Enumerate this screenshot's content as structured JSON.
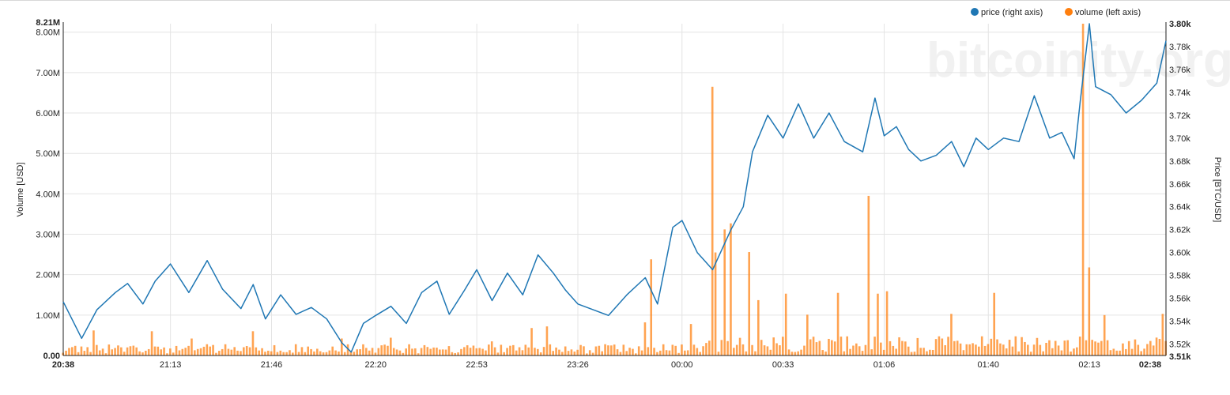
{
  "chart_data": {
    "type": "bar+line",
    "watermark": "bitcoinity.org",
    "legend": {
      "placement": "top-right",
      "items": [
        {
          "label": "price (right axis)",
          "color": "#1f77b4"
        },
        {
          "label": "volume (left axis)",
          "color": "#ff7f0e"
        }
      ]
    },
    "left_axis": {
      "label": "Volume [USD]",
      "ylim": [
        0,
        8.21
      ],
      "ticks": [
        0,
        1,
        2,
        3,
        4,
        5,
        6,
        7,
        8
      ],
      "tick_labels": [
        "0.00",
        "1.00M",
        "2.00M",
        "3.00M",
        "4.00M",
        "5.00M",
        "6.00M",
        "7.00M",
        "8.00M"
      ],
      "max_label": "8.21M"
    },
    "right_axis": {
      "label": "Price [BTC/USD]",
      "ylim": [
        3510,
        3800
      ],
      "ticks": [
        3520,
        3540,
        3560,
        3580,
        3600,
        3620,
        3640,
        3660,
        3680,
        3700,
        3720,
        3740,
        3760,
        3780
      ],
      "tick_labels": [
        "3.52k",
        "3.54k",
        "3.56k",
        "3.58k",
        "3.60k",
        "3.62k",
        "3.64k",
        "3.66k",
        "3.68k",
        "3.70k",
        "3.72k",
        "3.74k",
        "3.76k",
        "3.78k"
      ],
      "min_label": "3.51k",
      "max_label": "3.80k"
    },
    "x_axis": {
      "range": [
        "20:38",
        "02:38"
      ],
      "start_label": "20:38",
      "end_label": "02:38",
      "ticks": [
        "21:13",
        "21:46",
        "22:20",
        "22:53",
        "23:26",
        "00:00",
        "00:33",
        "01:06",
        "01:40",
        "02:13"
      ]
    },
    "grid": true,
    "series": [
      {
        "name": "price (right axis)",
        "axis": "right",
        "type": "line",
        "color": "#1f77b4",
        "points": [
          [
            "20:38",
            3557
          ],
          [
            "20:44",
            3525
          ],
          [
            "20:49",
            3550
          ],
          [
            "20:55",
            3565
          ],
          [
            "20:59",
            3573
          ],
          [
            "21:04",
            3555
          ],
          [
            "21:08",
            3575
          ],
          [
            "21:13",
            3590
          ],
          [
            "21:19",
            3565
          ],
          [
            "21:25",
            3593
          ],
          [
            "21:30",
            3568
          ],
          [
            "21:36",
            3551
          ],
          [
            "21:40",
            3572
          ],
          [
            "21:44",
            3542
          ],
          [
            "21:49",
            3563
          ],
          [
            "21:54",
            3546
          ],
          [
            "21:59",
            3552
          ],
          [
            "22:04",
            3542
          ],
          [
            "22:09",
            3521
          ],
          [
            "22:12",
            3513
          ],
          [
            "22:16",
            3538
          ],
          [
            "22:20",
            3545
          ],
          [
            "22:25",
            3553
          ],
          [
            "22:30",
            3538
          ],
          [
            "22:35",
            3565
          ],
          [
            "22:40",
            3575
          ],
          [
            "22:44",
            3546
          ],
          [
            "22:49",
            3567
          ],
          [
            "22:53",
            3585
          ],
          [
            "22:58",
            3558
          ],
          [
            "23:03",
            3582
          ],
          [
            "23:08",
            3563
          ],
          [
            "23:13",
            3598
          ],
          [
            "23:18",
            3582
          ],
          [
            "23:22",
            3567
          ],
          [
            "23:26",
            3555
          ],
          [
            "23:31",
            3550
          ],
          [
            "23:36",
            3545
          ],
          [
            "23:42",
            3563
          ],
          [
            "23:48",
            3578
          ],
          [
            "23:52",
            3555
          ],
          [
            "23:57",
            3622
          ],
          [
            "00:00",
            3628
          ],
          [
            "00:05",
            3600
          ],
          [
            "00:10",
            3585
          ],
          [
            "00:16",
            3620
          ],
          [
            "00:20",
            3640
          ],
          [
            "00:23",
            3688
          ],
          [
            "00:28",
            3720
          ],
          [
            "00:33",
            3700
          ],
          [
            "00:38",
            3730
          ],
          [
            "00:43",
            3700
          ],
          [
            "00:48",
            3722
          ],
          [
            "00:53",
            3697
          ],
          [
            "00:59",
            3688
          ],
          [
            "01:03",
            3735
          ],
          [
            "01:06",
            3702
          ],
          [
            "01:10",
            3710
          ],
          [
            "01:14",
            3690
          ],
          [
            "01:18",
            3680
          ],
          [
            "01:23",
            3685
          ],
          [
            "01:28",
            3697
          ],
          [
            "01:32",
            3675
          ],
          [
            "01:36",
            3700
          ],
          [
            "01:40",
            3690
          ],
          [
            "01:45",
            3700
          ],
          [
            "01:50",
            3697
          ],
          [
            "01:55",
            3737
          ],
          [
            "02:00",
            3700
          ],
          [
            "02:04",
            3705
          ],
          [
            "02:08",
            3682
          ],
          [
            "02:10",
            3732
          ],
          [
            "02:13",
            3800
          ],
          [
            "02:15",
            3745
          ],
          [
            "02:20",
            3738
          ],
          [
            "02:25",
            3722
          ],
          [
            "02:30",
            3733
          ],
          [
            "02:35",
            3748
          ],
          [
            "02:38",
            3785
          ]
        ]
      },
      {
        "name": "volume (left axis)",
        "axis": "left",
        "type": "bar",
        "color": "#ff7f0e",
        "unit": "M USD",
        "spikes": [
          [
            "20:48",
            0.62
          ],
          [
            "21:07",
            0.6
          ],
          [
            "21:20",
            0.42
          ],
          [
            "21:40",
            0.6
          ],
          [
            "22:09",
            0.42
          ],
          [
            "22:25",
            0.44
          ],
          [
            "22:58",
            0.35
          ],
          [
            "23:11",
            0.68
          ],
          [
            "23:16",
            0.72
          ],
          [
            "23:48",
            0.82
          ],
          [
            "23:50",
            2.38
          ],
          [
            "00:03",
            0.78
          ],
          [
            "00:10",
            6.65
          ],
          [
            "00:11",
            2.55
          ],
          [
            "00:14",
            3.12
          ],
          [
            "00:16",
            3.27
          ],
          [
            "00:22",
            2.56
          ],
          [
            "00:25",
            1.37
          ],
          [
            "00:34",
            1.53
          ],
          [
            "00:41",
            1.01
          ],
          [
            "00:51",
            1.55
          ],
          [
            "01:01",
            3.95
          ],
          [
            "01:04",
            1.53
          ],
          [
            "01:07",
            1.59
          ],
          [
            "01:28",
            1.03
          ],
          [
            "01:42",
            1.55
          ],
          [
            "02:11",
            8.21
          ],
          [
            "02:13",
            2.18
          ],
          [
            "02:18",
            1.0
          ],
          [
            "02:37",
            1.03
          ]
        ]
      }
    ]
  }
}
